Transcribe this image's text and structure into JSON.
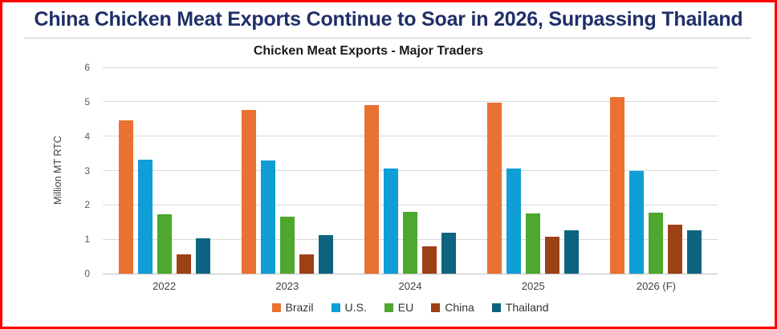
{
  "page": {
    "headline": "China Chicken Meat Exports Continue to Soar in 2026, Surpassing Thailand",
    "headline_color": "#1f2f68",
    "border_color": "#ff0000"
  },
  "chart_data": {
    "type": "bar",
    "title": "Chicken Meat Exports - Major Traders",
    "ylabel": "Million MT RTC",
    "xlabel": "",
    "ylim": [
      0,
      6
    ],
    "yticks": [
      0,
      1,
      2,
      3,
      4,
      5,
      6
    ],
    "grid": true,
    "legend_position": "bottom",
    "categories": [
      "2022",
      "2023",
      "2024",
      "2025",
      "2026 (F)"
    ],
    "series": [
      {
        "name": "Brazil",
        "color": "#E97132",
        "values": [
          4.45,
          4.77,
          4.9,
          4.98,
          5.14
        ]
      },
      {
        "name": "U.S.",
        "color": "#0F9ED5",
        "values": [
          3.32,
          3.3,
          3.05,
          3.05,
          3.0
        ]
      },
      {
        "name": "EU",
        "color": "#4EA72E",
        "values": [
          1.73,
          1.66,
          1.79,
          1.74,
          1.77
        ]
      },
      {
        "name": "China",
        "color": "#9C4116",
        "values": [
          0.55,
          0.56,
          0.79,
          1.08,
          1.42
        ]
      },
      {
        "name": "Thailand",
        "color": "#0E6480",
        "values": [
          1.02,
          1.12,
          1.19,
          1.26,
          1.26
        ]
      }
    ]
  }
}
